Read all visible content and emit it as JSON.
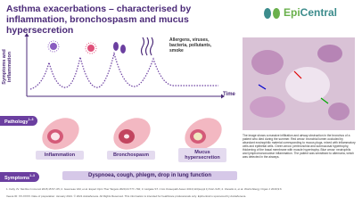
{
  "header": {
    "title": "Asthma exacerbations – characterised by inflammation, bronchospasm and mucus hypersecretion",
    "logo_1": "Epi",
    "logo_2": "Central"
  },
  "diagram": {
    "y_axis_label": "Symptoms and inflammation",
    "x_axis_label": "Time",
    "triggers": "Allergens, viruses, bacteria, pollutants, smoke"
  },
  "pathology": {
    "label": "Pathology",
    "ref": "1–3",
    "stages": [
      "Inflammation",
      "Bronchospasm",
      "Mucus hypersecretion"
    ]
  },
  "symptoms": {
    "label": "Symptoms",
    "ref": "1–3",
    "text": "Dyspnoea, cough, phlegm, drop in lung function"
  },
  "image_caption": "The image shows a massive infiltration and airway obstruction in the bronchus of a patient who died during the summer. Red arrow: bronchial lumen occluded by abundant eosinophilic material corresponding to mucus plugs, mixed with inflammatory cells and epithelial cells. Green arrow: peribronchial and submucosal hypertrophy, thickening of the basal membrane with muscle hypertrophy. Blue arrow: neutrophils and lymphomononuclear inflammation. The patient was sensitised to alternaria, which was detected in the airways.",
  "footer": {
    "references": "1. Fahy JV. Nat Rev Immunol 2015;15:57–65; 2. Gauvreau GM, et al. Expert Opin Ther Targets 2020;24:777–792; 3. Holgate ST. J Am Osteopath Assoc 2013;113(suppl 1):S12–S15; 4. Vianello A, et al. World Allergy Organ J 2016;9:6",
    "legal": "Veeva ID: XX-XXXX. Date of preparation: January 2021. © 2021 AstraZeneca. All Rights Reserved. This information is intended for healthcare professionals only. EpiCentral is sponsored by AstraZeneca."
  }
}
